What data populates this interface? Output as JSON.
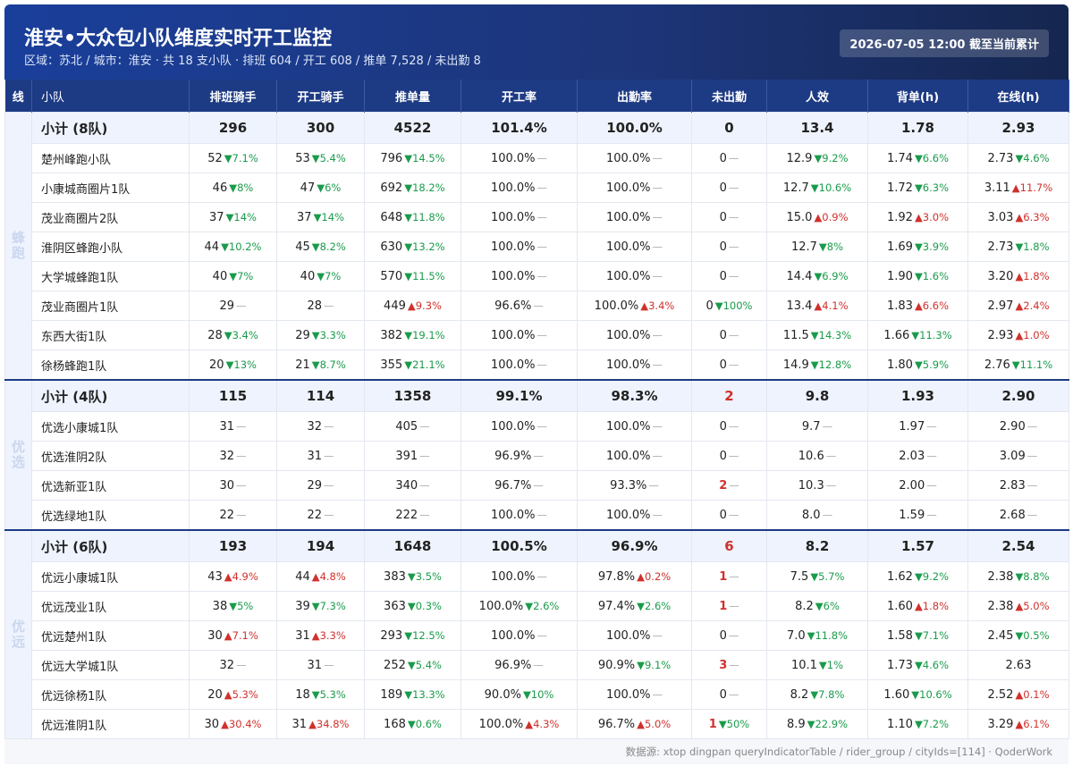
{
  "header": {
    "title": "淮安•大众包小队维度实时开工监控",
    "subtitle": "区域：苏北 / 城市：淮安 · 共 18 支小队 · 排班 604 / 开工 608 / 推单 7,528 / 未出勤 8",
    "badge": "2026-07-05 12:00 截至当前累计"
  },
  "table": {
    "columns": [
      "线",
      "小队",
      "排班骑手",
      "开工骑手",
      "推单量",
      "开工率",
      "出勤率",
      "未出勤",
      "人效",
      "背单(h)",
      "在线(h)"
    ],
    "groups": [
      {
        "line": "蜂跑",
        "subtotal": {
          "name": "小计 (8队)",
          "cells": [
            "296",
            "300",
            "4522",
            "101.4%",
            "100.0%",
            "0",
            "13.4",
            "1.78",
            "2.93"
          ]
        },
        "rows": [
          {
            "name": "楚州峰跑小队",
            "cells": [
              [
                "52",
                "▼7.1%"
              ],
              [
                "53",
                "▼5.4%"
              ],
              [
                "796",
                "▼14.5%"
              ],
              [
                "100.0%",
                "—"
              ],
              [
                "100.0%",
                "—"
              ],
              [
                "0",
                "—"
              ],
              [
                "12.9",
                "▼9.2%"
              ],
              [
                "1.74",
                "▼6.6%"
              ],
              [
                "2.73",
                "▼4.6%"
              ]
            ]
          },
          {
            "name": "小康城商圈片1队",
            "cells": [
              [
                "46",
                "▼8%"
              ],
              [
                "47",
                "▼6%"
              ],
              [
                "692",
                "▼18.2%"
              ],
              [
                "100.0%",
                "—"
              ],
              [
                "100.0%",
                "—"
              ],
              [
                "0",
                "—"
              ],
              [
                "12.7",
                "▼10.6%"
              ],
              [
                "1.72",
                "▼6.3%"
              ],
              [
                "3.11",
                "▲11.7%"
              ]
            ]
          },
          {
            "name": "茂业商圈片2队",
            "cells": [
              [
                "37",
                "▼14%"
              ],
              [
                "37",
                "▼14%"
              ],
              [
                "648",
                "▼11.8%"
              ],
              [
                "100.0%",
                "—"
              ],
              [
                "100.0%",
                "—"
              ],
              [
                "0",
                "—"
              ],
              [
                "15.0",
                "▲0.9%"
              ],
              [
                "1.92",
                "▲3.0%"
              ],
              [
                "3.03",
                "▲6.3%"
              ]
            ]
          },
          {
            "name": "淮阴区蜂跑小队",
            "cells": [
              [
                "44",
                "▼10.2%"
              ],
              [
                "45",
                "▼8.2%"
              ],
              [
                "630",
                "▼13.2%"
              ],
              [
                "100.0%",
                "—"
              ],
              [
                "100.0%",
                "—"
              ],
              [
                "0",
                "—"
              ],
              [
                "12.7",
                "▼8%"
              ],
              [
                "1.69",
                "▼3.9%"
              ],
              [
                "2.73",
                "▼1.8%"
              ]
            ]
          },
          {
            "name": "大学城蜂跑1队",
            "cells": [
              [
                "40",
                "▼7%"
              ],
              [
                "40",
                "▼7%"
              ],
              [
                "570",
                "▼11.5%"
              ],
              [
                "100.0%",
                "—"
              ],
              [
                "100.0%",
                "—"
              ],
              [
                "0",
                "—"
              ],
              [
                "14.4",
                "▼6.9%"
              ],
              [
                "1.90",
                "▼1.6%"
              ],
              [
                "3.20",
                "▲1.8%"
              ]
            ]
          },
          {
            "name": "茂业商圈片1队",
            "cells": [
              [
                "29",
                "—"
              ],
              [
                "28",
                "—"
              ],
              [
                "449",
                "▲9.3%"
              ],
              [
                "96.6%",
                "—"
              ],
              [
                "100.0%",
                "▲3.4%"
              ],
              [
                "0",
                "▼100%"
              ],
              [
                "13.4",
                "▲4.1%"
              ],
              [
                "1.83",
                "▲6.6%"
              ],
              [
                "2.97",
                "▲2.4%"
              ]
            ]
          },
          {
            "name": "东西大街1队",
            "cells": [
              [
                "28",
                "▼3.4%"
              ],
              [
                "29",
                "▼3.3%"
              ],
              [
                "382",
                "▼19.1%"
              ],
              [
                "100.0%",
                "—"
              ],
              [
                "100.0%",
                "—"
              ],
              [
                "0",
                "—"
              ],
              [
                "11.5",
                "▼14.3%"
              ],
              [
                "1.66",
                "▼11.3%"
              ],
              [
                "2.93",
                "▲1.0%"
              ]
            ]
          },
          {
            "name": "徐杨蜂跑1队",
            "cells": [
              [
                "20",
                "▼13%"
              ],
              [
                "21",
                "▼8.7%"
              ],
              [
                "355",
                "▼21.1%"
              ],
              [
                "100.0%",
                "—"
              ],
              [
                "100.0%",
                "—"
              ],
              [
                "0",
                "—"
              ],
              [
                "14.9",
                "▼12.8%"
              ],
              [
                "1.80",
                "▼5.9%"
              ],
              [
                "2.76",
                "▼11.1%"
              ]
            ]
          }
        ]
      },
      {
        "line": "优选",
        "subtotal": {
          "name": "小计 (4队)",
          "cells": [
            "115",
            "114",
            "1358",
            "99.1%",
            "98.3%",
            "2",
            "9.8",
            "1.93",
            "2.90"
          ]
        },
        "rows": [
          {
            "name": "优选小康城1队",
            "cells": [
              [
                "31",
                "—"
              ],
              [
                "32",
                "—"
              ],
              [
                "405",
                "—"
              ],
              [
                "100.0%",
                "—"
              ],
              [
                "100.0%",
                "—"
              ],
              [
                "0",
                "—"
              ],
              [
                "9.7",
                "—"
              ],
              [
                "1.97",
                "—"
              ],
              [
                "2.90",
                "—"
              ]
            ]
          },
          {
            "name": "优选淮阴2队",
            "cells": [
              [
                "32",
                "—"
              ],
              [
                "31",
                "—"
              ],
              [
                "391",
                "—"
              ],
              [
                "96.9%",
                "—"
              ],
              [
                "100.0%",
                "—"
              ],
              [
                "0",
                "—"
              ],
              [
                "10.6",
                "—"
              ],
              [
                "2.03",
                "—"
              ],
              [
                "3.09",
                "—"
              ]
            ]
          },
          {
            "name": "优选新亚1队",
            "cells": [
              [
                "30",
                "—"
              ],
              [
                "29",
                "—"
              ],
              [
                "340",
                "—"
              ],
              [
                "96.7%",
                "—"
              ],
              [
                "93.3%",
                "—"
              ],
              [
                "2",
                "—"
              ],
              [
                "10.3",
                "—"
              ],
              [
                "2.00",
                "—"
              ],
              [
                "2.83",
                "—"
              ]
            ]
          },
          {
            "name": "优选绿地1队",
            "cells": [
              [
                "22",
                "—"
              ],
              [
                "22",
                "—"
              ],
              [
                "222",
                "—"
              ],
              [
                "100.0%",
                "—"
              ],
              [
                "100.0%",
                "—"
              ],
              [
                "0",
                "—"
              ],
              [
                "8.0",
                "—"
              ],
              [
                "1.59",
                "—"
              ],
              [
                "2.68",
                "—"
              ]
            ]
          }
        ]
      },
      {
        "line": "优远",
        "subtotal": {
          "name": "小计 (6队)",
          "cells": [
            "193",
            "194",
            "1648",
            "100.5%",
            "96.9%",
            "6",
            "8.2",
            "1.57",
            "2.54"
          ]
        },
        "rows": [
          {
            "name": "优远小康城1队",
            "cells": [
              [
                "43",
                "▲4.9%"
              ],
              [
                "44",
                "▲4.8%"
              ],
              [
                "383",
                "▼3.5%"
              ],
              [
                "100.0%",
                "—"
              ],
              [
                "97.8%",
                "▲0.2%"
              ],
              [
                "1",
                "—"
              ],
              [
                "7.5",
                "▼5.7%"
              ],
              [
                "1.62",
                "▼9.2%"
              ],
              [
                "2.38",
                "▼8.8%"
              ]
            ]
          },
          {
            "name": "优远茂业1队",
            "cells": [
              [
                "38",
                "▼5%"
              ],
              [
                "39",
                "▼7.3%"
              ],
              [
                "363",
                "▼0.3%"
              ],
              [
                "100.0%",
                "▼2.6%"
              ],
              [
                "97.4%",
                "▼2.6%"
              ],
              [
                "1",
                "—"
              ],
              [
                "8.2",
                "▼6%"
              ],
              [
                "1.60",
                "▲1.8%"
              ],
              [
                "2.38",
                "▲5.0%"
              ]
            ]
          },
          {
            "name": "优远楚州1队",
            "cells": [
              [
                "30",
                "▲7.1%"
              ],
              [
                "31",
                "▲3.3%"
              ],
              [
                "293",
                "▼12.5%"
              ],
              [
                "100.0%",
                "—"
              ],
              [
                "100.0%",
                "—"
              ],
              [
                "0",
                "—"
              ],
              [
                "7.0",
                "▼11.8%"
              ],
              [
                "1.58",
                "▼7.1%"
              ],
              [
                "2.45",
                "▼0.5%"
              ]
            ]
          },
          {
            "name": "优远大学城1队",
            "cells": [
              [
                "32",
                "—"
              ],
              [
                "31",
                "—"
              ],
              [
                "252",
                "▼5.4%"
              ],
              [
                "96.9%",
                "—"
              ],
              [
                "90.9%",
                "▼9.1%"
              ],
              [
                "3",
                "—"
              ],
              [
                "10.1",
                "▼1%"
              ],
              [
                "1.73",
                "▼4.6%"
              ],
              [
                "2.63"
              ]
            ]
          },
          {
            "name": "优远徐杨1队",
            "cells": [
              [
                "20",
                "▲5.3%"
              ],
              [
                "18",
                "▼5.3%"
              ],
              [
                "189",
                "▼13.3%"
              ],
              [
                "90.0%",
                "▼10%"
              ],
              [
                "100.0%",
                "—"
              ],
              [
                "0",
                "—"
              ],
              [
                "8.2",
                "▼7.8%"
              ],
              [
                "1.60",
                "▼10.6%"
              ],
              [
                "2.52",
                "▲0.1%"
              ]
            ]
          },
          {
            "name": "优远淮阴1队",
            "cells": [
              [
                "30",
                "▲30.4%"
              ],
              [
                "31",
                "▲34.8%"
              ],
              [
                "168",
                "▼0.6%"
              ],
              [
                "100.0%",
                "▲4.3%"
              ],
              [
                "96.7%",
                "▲5.0%"
              ],
              [
                "1",
                "▼50%"
              ],
              [
                "8.9",
                "▼22.9%"
              ],
              [
                "1.10",
                "▼7.2%"
              ],
              [
                "3.29",
                "▲6.1%"
              ]
            ]
          }
        ]
      }
    ]
  },
  "footer": "数据源:  xtop dingpan queryIndicatorTable / rider_group / cityIds=[114] · QoderWork"
}
